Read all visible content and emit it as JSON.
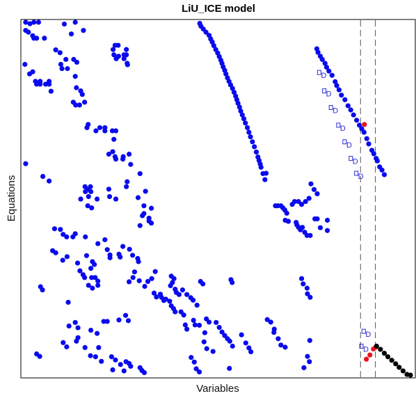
{
  "chart_data": {
    "type": "scatter",
    "title": "LiU_ICE model",
    "xlabel": "Variables",
    "ylabel": "Equations",
    "xlim": [
      0,
      100
    ],
    "ylim": [
      100,
      0
    ],
    "ticks_shown": false,
    "colors": {
      "main": "#0a0aee",
      "highlight": "#e8141c",
      "tail": "#000000",
      "dmark": "#2a2ad8",
      "separator": "#555555"
    },
    "vertical_separators": [
      86.5,
      90.3
    ],
    "blue_points": [
      [
        0.7,
        0.2
      ],
      [
        1.8,
        0.8
      ],
      [
        2.8,
        0.2
      ],
      [
        4.0,
        0.2
      ],
      [
        13.4,
        0.2
      ],
      [
        0.7,
        2.7
      ],
      [
        1.4,
        3.2
      ],
      [
        2.5,
        4.2
      ],
      [
        2.8,
        4.9
      ],
      [
        3.5,
        4.9
      ],
      [
        5.5,
        4.9
      ],
      [
        10.6,
        0.9
      ],
      [
        12.4,
        3.7
      ],
      [
        15.5,
        2.7
      ],
      [
        8.4,
        8.2
      ],
      [
        9.5,
        9.0
      ],
      [
        11.0,
        10.9
      ],
      [
        9.7,
        12.3
      ],
      [
        10.0,
        13.5
      ],
      [
        11.4,
        13.5
      ],
      [
        13.0,
        10.9
      ],
      [
        13.8,
        11.7
      ],
      [
        13.4,
        15.7
      ],
      [
        13.7,
        18.9
      ],
      [
        14.8,
        19.8
      ],
      [
        15.2,
        20.8
      ],
      [
        0.5,
        12.3
      ],
      [
        1.7,
        15.0
      ],
      [
        2.5,
        14.4
      ],
      [
        3.2,
        17.1
      ],
      [
        3.5,
        17.9
      ],
      [
        4.4,
        17.1
      ],
      [
        4.4,
        17.9
      ],
      [
        5.8,
        17.9
      ],
      [
        6.7,
        17.1
      ],
      [
        6.7,
        17.9
      ],
      [
        7.2,
        19.9
      ],
      [
        12.9,
        23.0
      ],
      [
        13.5,
        23.8
      ],
      [
        14.5,
        23.8
      ],
      [
        15.8,
        23.0
      ],
      [
        16.4,
        30.2
      ],
      [
        16.7,
        29.3
      ],
      [
        18.7,
        31.1
      ],
      [
        19.7,
        30.2
      ],
      [
        21.0,
        30.2
      ],
      [
        21.0,
        31.1
      ],
      [
        22.9,
        31.1
      ],
      [
        23.8,
        31.1
      ],
      [
        23.3,
        33.5
      ],
      [
        22.0,
        37.7
      ],
      [
        23.0,
        37.0
      ],
      [
        23.6,
        38.4
      ],
      [
        23.8,
        39.1
      ],
      [
        25.7,
        38.4
      ],
      [
        27.2,
        37.7
      ],
      [
        25.6,
        39.1
      ],
      [
        27.6,
        40.6
      ],
      [
        30.0,
        43.2
      ],
      [
        23.6,
        6.9
      ],
      [
        24.4,
        6.9
      ],
      [
        23.1,
        8.1
      ],
      [
        23.3,
        9.6
      ],
      [
        23.9,
        10.7
      ],
      [
        24.5,
        10.0
      ],
      [
        25.9,
        10.7
      ],
      [
        25.9,
        9.6
      ],
      [
        26.5,
        9.6
      ],
      [
        26.5,
        8.1
      ],
      [
        26.7,
        12.0
      ],
      [
        26.8,
        12.4
      ],
      [
        45.3,
        0.7
      ],
      [
        45.6,
        1.5
      ],
      [
        46.2,
        2.3
      ],
      [
        46.9,
        3.2
      ],
      [
        47.7,
        4.1
      ],
      [
        48.1,
        5.1
      ],
      [
        48.5,
        6.0
      ],
      [
        48.9,
        7.0
      ],
      [
        49.4,
        8.1
      ],
      [
        49.9,
        9.1
      ],
      [
        50.3,
        10.1
      ],
      [
        50.7,
        11.1
      ],
      [
        51.0,
        12.0
      ],
      [
        51.3,
        13.0
      ],
      [
        51.7,
        14.0
      ],
      [
        52.0,
        15.0
      ],
      [
        52.4,
        16.1
      ],
      [
        52.8,
        17.1
      ],
      [
        53.2,
        18.1
      ],
      [
        53.7,
        19.1
      ],
      [
        54.1,
        20.2
      ],
      [
        54.5,
        21.3
      ],
      [
        54.8,
        22.3
      ],
      [
        55.1,
        23.3
      ],
      [
        55.5,
        24.4
      ],
      [
        55.8,
        25.5
      ],
      [
        56.2,
        26.6
      ],
      [
        56.6,
        27.7
      ],
      [
        57.0,
        28.9
      ],
      [
        57.5,
        30.2
      ],
      [
        57.9,
        31.5
      ],
      [
        58.3,
        32.8
      ],
      [
        58.8,
        34.2
      ],
      [
        59.3,
        35.6
      ],
      [
        59.8,
        37.1
      ],
      [
        60.2,
        38.5
      ],
      [
        60.5,
        39.5
      ],
      [
        60.8,
        40.5
      ],
      [
        61.0,
        41.4
      ],
      [
        61.5,
        43.2
      ],
      [
        62.0,
        44.9
      ],
      [
        75.3,
        7.9
      ],
      [
        75.6,
        8.9
      ],
      [
        76.2,
        10.0
      ],
      [
        76.7,
        10.9
      ],
      [
        77.4,
        12.0
      ],
      [
        77.8,
        13.1
      ],
      [
        78.4,
        14.2
      ],
      [
        79.2,
        15.4
      ],
      [
        80.0,
        17.2
      ],
      [
        80.4,
        18.3
      ],
      [
        81.0,
        19.5
      ],
      [
        81.6,
        21.0
      ],
      [
        82.5,
        22.3
      ],
      [
        83.3,
        24.0
      ],
      [
        84.0,
        25.2
      ],
      [
        84.7,
        26.6
      ],
      [
        85.5,
        28.1
      ],
      [
        86.2,
        29.5
      ],
      [
        86.8,
        30.5
      ],
      [
        87.4,
        31.5
      ],
      [
        88.1,
        33.3
      ],
      [
        88.6,
        34.8
      ],
      [
        89.4,
        36.6
      ],
      [
        89.9,
        37.6
      ],
      [
        90.5,
        38.9
      ],
      [
        90.8,
        39.6
      ],
      [
        91.4,
        41.3
      ],
      [
        92.0,
        42.2
      ],
      [
        92.6,
        43.5
      ],
      [
        0.7,
        40.4
      ],
      [
        5.1,
        44.0
      ],
      [
        6.7,
        45.3
      ],
      [
        15.9,
        46.9
      ],
      [
        16.0,
        48.3
      ],
      [
        16.7,
        47.6
      ],
      [
        17.3,
        46.9
      ],
      [
        17.4,
        48.3
      ],
      [
        16.8,
        49.7
      ],
      [
        14.8,
        50.4
      ],
      [
        16.6,
        52.3
      ],
      [
        17.6,
        52.9
      ],
      [
        19.0,
        50.4
      ],
      [
        22.0,
        47.6
      ],
      [
        22.2,
        49.7
      ],
      [
        23.8,
        50.4
      ],
      [
        26.5,
        46.9
      ],
      [
        26.7,
        45.5
      ],
      [
        29.5,
        50.0
      ],
      [
        31.4,
        48.2
      ],
      [
        31.0,
        52.3
      ],
      [
        32.9,
        53.0
      ],
      [
        31.0,
        54.5
      ],
      [
        32.3,
        55.8
      ],
      [
        32.9,
        57.2
      ],
      [
        30.0,
        57.9
      ],
      [
        32.3,
        56.6
      ],
      [
        30.6,
        55.1
      ],
      [
        62.3,
        43.1
      ],
      [
        73.8,
        46.1
      ],
      [
        74.6,
        47.7
      ],
      [
        75.4,
        48.9
      ],
      [
        73.3,
        50.2
      ],
      [
        72.4,
        51.1
      ],
      [
        71.4,
        51.9
      ],
      [
        70.6,
        51.1
      ],
      [
        69.6,
        51.1
      ],
      [
        69.0,
        51.9
      ],
      [
        64.7,
        52.3
      ],
      [
        65.3,
        52.3
      ],
      [
        66.1,
        52.3
      ],
      [
        66.6,
        52.9
      ],
      [
        67.1,
        53.5
      ],
      [
        67.6,
        54.4
      ],
      [
        67.2,
        56.4
      ],
      [
        68.0,
        56.7
      ],
      [
        70.0,
        57.0
      ],
      [
        70.2,
        57.7
      ],
      [
        70.6,
        58.4
      ],
      [
        71.1,
        59.1
      ],
      [
        71.6,
        58.4
      ],
      [
        72.2,
        59.8
      ],
      [
        72.8,
        60.7
      ],
      [
        73.6,
        60.7
      ],
      [
        74.8,
        56.0
      ],
      [
        75.4,
        56.0
      ],
      [
        76.2,
        58.5
      ],
      [
        78.0,
        56.4
      ],
      [
        78.0,
        59.3
      ],
      [
        16.0,
        61.1
      ],
      [
        19.2,
        63.0
      ],
      [
        21.0,
        61.9
      ],
      [
        16.3,
        66.4
      ],
      [
        14.0,
        68.5
      ],
      [
        17.8,
        68.1
      ],
      [
        18.3,
        68.9
      ],
      [
        17.4,
        70.0
      ],
      [
        21.6,
        64.7
      ],
      [
        22.3,
        66.2
      ],
      [
        22.3,
        67.0
      ],
      [
        24.6,
        66.0
      ],
      [
        24.9,
        66.8
      ],
      [
        25.6,
        63.8
      ],
      [
        27.3,
        64.6
      ],
      [
        28.1,
        66.3
      ],
      [
        29.4,
        67.2
      ],
      [
        29.6,
        68.1
      ],
      [
        28.6,
        71.0
      ],
      [
        28.2,
        72.6
      ],
      [
        27.2,
        73.8
      ],
      [
        29.8,
        73.5
      ],
      [
        31.2,
        75.1
      ],
      [
        32.0,
        73.7
      ],
      [
        33.0,
        72.9
      ],
      [
        33.9,
        70.9
      ],
      [
        14.6,
        70.7
      ],
      [
        15.4,
        71.8
      ],
      [
        15.8,
        72.6
      ],
      [
        17.6,
        72.6
      ],
      [
        18.5,
        72.6
      ],
      [
        16.8,
        74.8
      ],
      [
        19.2,
        73.6
      ],
      [
        19.2,
        74.8
      ],
      [
        17.8,
        75.6
      ],
      [
        33.6,
        77.0
      ],
      [
        34.2,
        78.1
      ],
      [
        35.2,
        77.3
      ],
      [
        35.5,
        78.2
      ],
      [
        36.1,
        79.1
      ],
      [
        36.6,
        78.7
      ],
      [
        37.6,
        79.3
      ],
      [
        38.0,
        80.6
      ],
      [
        38.6,
        81.4
      ],
      [
        39.0,
        82.3
      ],
      [
        40.5,
        82.3
      ],
      [
        41.2,
        83.2
      ],
      [
        41.6,
        86.0
      ],
      [
        42.0,
        87.2
      ],
      [
        43.7,
        84.7
      ],
      [
        45.2,
        86.1
      ],
      [
        47.0,
        84.3
      ],
      [
        47.7,
        85.2
      ],
      [
        49.5,
        85.3
      ],
      [
        50.3,
        86.7
      ],
      [
        51.0,
        88.0
      ],
      [
        51.7,
        89.0
      ],
      [
        52.4,
        89.9
      ],
      [
        53.0,
        90.6
      ],
      [
        53.7,
        92.0
      ],
      [
        44.1,
        86.0
      ],
      [
        46.6,
        88.2
      ],
      [
        46.4,
        90.8
      ],
      [
        47.1,
        92.7
      ],
      [
        48.7,
        93.5
      ],
      [
        62.6,
        84.5
      ],
      [
        63.5,
        85.2
      ],
      [
        64.4,
        87.2
      ],
      [
        64.3,
        88.1
      ],
      [
        65.4,
        89.9
      ],
      [
        66.1,
        91.7
      ],
      [
        67.2,
        92.3
      ],
      [
        56.0,
        88.8
      ],
      [
        57.1,
        91.1
      ],
      [
        57.9,
        92.5
      ],
      [
        58.4,
        93.6
      ],
      [
        71.4,
        72.9
      ],
      [
        71.8,
        74.4
      ],
      [
        72.8,
        75.6
      ],
      [
        72.9,
        77.2
      ],
      [
        73.6,
        78.2
      ],
      [
        8.1,
        58.8
      ],
      [
        9.6,
        59.0
      ],
      [
        10.3,
        60.4
      ],
      [
        11.2,
        61.1
      ],
      [
        12.8,
        61.1
      ],
      [
        13.4,
        60.2
      ],
      [
        7.6,
        65.0
      ],
      [
        8.4,
        65.6
      ],
      [
        10.2,
        67.7
      ],
      [
        11.3,
        66.7
      ],
      [
        4.5,
        75.2
      ],
      [
        5.0,
        76.1
      ],
      [
        11.6,
        79.6
      ],
      [
        11.8,
        86.3
      ],
      [
        13.4,
        85.3
      ],
      [
        17.4,
        87.5
      ],
      [
        19.0,
        88.4
      ],
      [
        20.7,
        85.0
      ],
      [
        21.6,
        85.0
      ],
      [
        24.6,
        84.6
      ],
      [
        26.3,
        83.3
      ],
      [
        27.0,
        84.8
      ],
      [
        10.3,
        91.0
      ],
      [
        11.2,
        92.2
      ],
      [
        13.7,
        90.6
      ],
      [
        15.9,
        92.4
      ],
      [
        17.3,
        94.7
      ],
      [
        20.1,
        96.3
      ],
      [
        22.7,
        95.0
      ],
      [
        23.7,
        95.9
      ],
      [
        25.0,
        97.2
      ],
      [
        26.4,
        96.4
      ],
      [
        27.6,
        97.7
      ],
      [
        30.0,
        98.1
      ],
      [
        38.0,
        72.2
      ],
      [
        38.7,
        72.9
      ],
      [
        38.3,
        74.0
      ],
      [
        37.8,
        74.9
      ],
      [
        39.0,
        75.9
      ],
      [
        39.3,
        76.8
      ],
      [
        40.0,
        77.4
      ],
      [
        40.9,
        76.1
      ],
      [
        42.0,
        77.4
      ],
      [
        43.0,
        78.3
      ],
      [
        43.6,
        79.0
      ],
      [
        44.6,
        80.4
      ],
      [
        3.5,
        94.2
      ],
      [
        4.3,
        94.9
      ],
      [
        14.1,
        86.8
      ],
      [
        14.1,
        89.6
      ],
      [
        18.6,
        95.0
      ],
      [
        19.4,
        92.4
      ],
      [
        23.0,
        98.7
      ],
      [
        25.9,
        99.0
      ],
      [
        27.2,
        96.9
      ],
      [
        30.5,
        98.9
      ],
      [
        31.1,
        99.5
      ],
      [
        45.5,
        73.7
      ],
      [
        46.1,
        74.4
      ],
      [
        43.1,
        95.2
      ],
      [
        43.9,
        96.5
      ],
      [
        44.4,
        98.4
      ],
      [
        45.2,
        99.3
      ],
      [
        53.3,
        73.2
      ],
      [
        53.6,
        74.0
      ],
      [
        52.9,
        98.3
      ],
      [
        72.0,
        98.1
      ],
      [
        73.5,
        90.4
      ],
      [
        72.9,
        94.9
      ],
      [
        73.4,
        96.4
      ]
    ],
    "red_points": [
      [
        87.5,
        29.3
      ],
      [
        88.0,
        95.7
      ],
      [
        88.9,
        94.5
      ],
      [
        89.8,
        92.8
      ],
      [
        90.4,
        92.3
      ]
    ],
    "tail_points": [
      [
        90.6,
        92.0
      ],
      [
        91.6,
        92.9
      ],
      [
        92.6,
        94.0
      ],
      [
        93.5,
        95.0
      ],
      [
        94.5,
        96.0
      ],
      [
        95.5,
        97.0
      ],
      [
        96.4,
        98.0
      ],
      [
        97.4,
        99.0
      ],
      [
        98.4,
        100.0
      ],
      [
        99.3,
        101.0
      ]
    ],
    "d_markers": [
      [
        76.0,
        15.0
      ],
      [
        77.3,
        20.2
      ],
      [
        79.0,
        24.9
      ],
      [
        80.9,
        29.9
      ],
      [
        82.5,
        34.6
      ],
      [
        84.1,
        39.3
      ],
      [
        85.5,
        43.5
      ],
      [
        87.4,
        88.2
      ],
      [
        86.8,
        92.4
      ]
    ]
  }
}
